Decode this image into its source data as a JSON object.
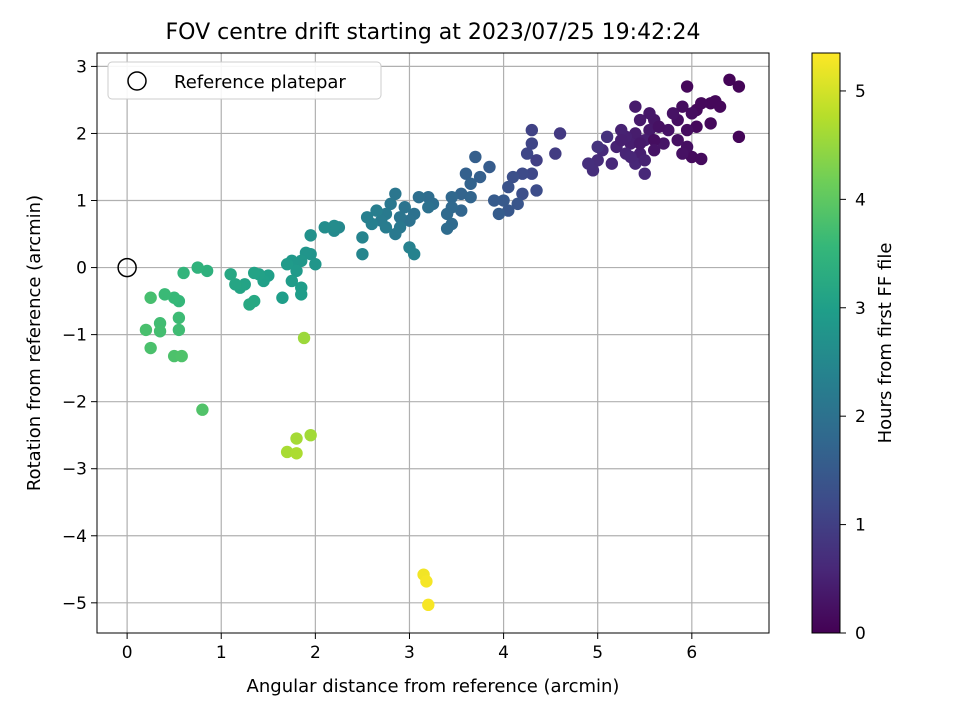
{
  "chart_data": {
    "type": "scatter",
    "title": "FOV centre drift starting at 2023/07/25 19:42:24",
    "xlabel": "Angular distance from reference (arcmin)",
    "ylabel": "Rotation from reference (arcmin)",
    "xlim": [
      -0.32,
      6.82
    ],
    "ylim": [
      -5.45,
      3.2
    ],
    "xticks": [
      "0",
      "1",
      "2",
      "3",
      "4",
      "5",
      "6"
    ],
    "yticks": [
      "−5",
      "−4",
      "−3",
      "−2",
      "−1",
      "0",
      "1",
      "2",
      "3"
    ],
    "xtick_values": [
      0,
      1,
      2,
      3,
      4,
      5,
      6
    ],
    "ytick_values": [
      -5,
      -4,
      -3,
      -2,
      -1,
      0,
      1,
      2,
      3
    ],
    "grid": true,
    "legend": {
      "placement": "top-left",
      "label": "Reference platepar",
      "marker": "open-circle"
    },
    "reference_point": {
      "x": 0,
      "y": 0
    },
    "colorbar": {
      "label": "Hours from first FF file",
      "range": [
        0,
        5.35
      ],
      "ticks": [
        "0",
        "1",
        "2",
        "3",
        "4",
        "5"
      ],
      "tick_values": [
        0,
        1,
        2,
        3,
        4,
        5
      ],
      "colormap": "viridis",
      "colors": [
        "#440154",
        "#482878",
        "#3e4a89",
        "#31688e",
        "#26828e",
        "#1f9e89",
        "#35b779",
        "#6ece58",
        "#b5de2b",
        "#fde725"
      ]
    },
    "points": [
      [
        6.4,
        2.8,
        0.05
      ],
      [
        6.5,
        2.7,
        0.05
      ],
      [
        6.5,
        1.95,
        0.06
      ],
      [
        5.95,
        2.7,
        0.1
      ],
      [
        6.2,
        2.45,
        0.1
      ],
      [
        6.25,
        2.48,
        0.1
      ],
      [
        6.3,
        2.4,
        0.1
      ],
      [
        6.05,
        2.35,
        0.12
      ],
      [
        6.1,
        2.45,
        0.12
      ],
      [
        6.2,
        2.15,
        0.12
      ],
      [
        6.05,
        2.1,
        0.12
      ],
      [
        6.0,
        1.65,
        0.15
      ],
      [
        6.1,
        1.62,
        0.15
      ],
      [
        6.0,
        2.3,
        0.18
      ],
      [
        5.9,
        2.4,
        0.18
      ],
      [
        5.95,
        2.05,
        0.2
      ],
      [
        5.85,
        2.2,
        0.22
      ],
      [
        5.95,
        1.8,
        0.22
      ],
      [
        5.85,
        1.9,
        0.24
      ],
      [
        5.9,
        1.7,
        0.24
      ],
      [
        5.8,
        2.3,
        0.26
      ],
      [
        5.75,
        2.05,
        0.28
      ],
      [
        5.7,
        1.85,
        0.3
      ],
      [
        5.6,
        2.2,
        0.32
      ],
      [
        5.55,
        2.3,
        0.34
      ],
      [
        5.55,
        2.05,
        0.36
      ],
      [
        5.45,
        2.2,
        0.38
      ],
      [
        5.4,
        2.4,
        0.4
      ],
      [
        5.4,
        2.0,
        0.42
      ],
      [
        5.35,
        1.85,
        0.44
      ],
      [
        5.5,
        1.9,
        0.44
      ],
      [
        5.45,
        1.7,
        0.46
      ],
      [
        5.3,
        1.95,
        0.48
      ],
      [
        5.25,
        2.05,
        0.5
      ],
      [
        5.2,
        1.8,
        0.52
      ],
      [
        5.3,
        1.7,
        0.55
      ],
      [
        5.4,
        1.55,
        0.58
      ],
      [
        5.5,
        1.4,
        0.6
      ],
      [
        5.15,
        1.55,
        0.62
      ],
      [
        5.05,
        1.75,
        0.65
      ],
      [
        5.0,
        1.6,
        0.68
      ],
      [
        4.95,
        1.45,
        0.7
      ],
      [
        4.9,
        1.55,
        0.72
      ],
      [
        5.1,
        1.95,
        0.75
      ],
      [
        5.0,
        1.8,
        0.78
      ],
      [
        5.6,
        1.9,
        0.2
      ],
      [
        5.65,
        2.1,
        0.24
      ],
      [
        5.5,
        1.6,
        0.5
      ],
      [
        5.35,
        1.65,
        0.56
      ],
      [
        5.45,
        1.85,
        0.36
      ],
      [
        5.6,
        1.75,
        0.28
      ],
      [
        5.25,
        1.9,
        0.46
      ],
      [
        4.6,
        2.0,
        0.9
      ],
      [
        4.55,
        1.7,
        0.95
      ],
      [
        4.35,
        1.6,
        1.0
      ],
      [
        4.3,
        2.05,
        1.05
      ],
      [
        4.3,
        1.85,
        1.1
      ],
      [
        4.25,
        1.7,
        1.12
      ],
      [
        4.3,
        1.4,
        1.15
      ],
      [
        4.2,
        1.4,
        1.2
      ],
      [
        4.35,
        1.15,
        1.25
      ],
      [
        4.2,
        1.1,
        1.28
      ],
      [
        4.1,
        1.35,
        1.3
      ],
      [
        4.05,
        1.2,
        1.35
      ],
      [
        4.15,
        0.95,
        1.4
      ],
      [
        4.05,
        0.85,
        1.45
      ],
      [
        4.0,
        1.0,
        1.48
      ],
      [
        3.9,
        1.0,
        1.52
      ],
      [
        3.95,
        0.8,
        1.55
      ],
      [
        3.85,
        1.5,
        1.55
      ],
      [
        3.7,
        1.65,
        1.6
      ],
      [
        3.75,
        1.35,
        1.62
      ],
      [
        3.6,
        1.4,
        1.65
      ],
      [
        3.65,
        1.25,
        1.68
      ],
      [
        3.55,
        1.1,
        1.7
      ],
      [
        3.65,
        1.05,
        1.72
      ],
      [
        3.55,
        0.85,
        1.75
      ],
      [
        3.45,
        1.05,
        1.78
      ],
      [
        3.45,
        0.9,
        1.8
      ],
      [
        3.4,
        0.8,
        1.82
      ],
      [
        3.45,
        0.65,
        1.85
      ],
      [
        3.4,
        0.58,
        1.88
      ],
      [
        3.2,
        1.05,
        1.9
      ],
      [
        3.25,
        0.95,
        1.92
      ],
      [
        3.1,
        1.05,
        1.95
      ],
      [
        3.2,
        0.9,
        1.98
      ],
      [
        3.05,
        0.8,
        2.0
      ],
      [
        3.0,
        0.7,
        2.02
      ],
      [
        2.95,
        0.9,
        2.05
      ],
      [
        2.9,
        0.75,
        2.08
      ],
      [
        2.85,
        1.1,
        2.1
      ],
      [
        2.8,
        0.95,
        2.12
      ],
      [
        2.9,
        0.6,
        2.15
      ],
      [
        2.85,
        0.5,
        2.18
      ],
      [
        2.75,
        0.8,
        2.2
      ],
      [
        2.7,
        0.7,
        2.22
      ],
      [
        2.75,
        0.6,
        2.25
      ],
      [
        2.65,
        0.85,
        2.28
      ],
      [
        2.6,
        0.65,
        2.3
      ],
      [
        2.55,
        0.75,
        2.32
      ],
      [
        3.0,
        0.3,
        2.35
      ],
      [
        3.05,
        0.2,
        2.38
      ],
      [
        2.5,
        0.45,
        2.42
      ],
      [
        2.5,
        0.2,
        2.45
      ],
      [
        2.25,
        0.6,
        2.5
      ],
      [
        2.2,
        0.55,
        2.55
      ],
      [
        2.2,
        0.62,
        2.58
      ],
      [
        2.1,
        0.6,
        2.62
      ],
      [
        1.95,
        0.48,
        2.7
      ],
      [
        1.95,
        0.2,
        2.75
      ],
      [
        1.9,
        0.22,
        2.78
      ],
      [
        2.0,
        0.05,
        2.8
      ],
      [
        1.85,
        0.1,
        2.82
      ],
      [
        1.75,
        0.1,
        2.85
      ],
      [
        1.8,
        -0.05,
        2.88
      ],
      [
        1.7,
        0.05,
        2.9
      ],
      [
        1.75,
        -0.2,
        2.92
      ],
      [
        1.85,
        -0.3,
        2.95
      ],
      [
        1.85,
        -0.4,
        2.95
      ],
      [
        1.65,
        -0.45,
        2.98
      ],
      [
        1.5,
        -0.12,
        3.0
      ],
      [
        1.45,
        -0.2,
        3.02
      ],
      [
        1.4,
        -0.1,
        3.05
      ],
      [
        1.35,
        -0.08,
        3.08
      ],
      [
        1.25,
        -0.25,
        3.1
      ],
      [
        1.2,
        -0.3,
        3.12
      ],
      [
        1.15,
        -0.25,
        3.15
      ],
      [
        1.1,
        -0.1,
        3.18
      ],
      [
        1.35,
        -0.5,
        3.2
      ],
      [
        1.3,
        -0.55,
        3.22
      ],
      [
        0.85,
        -0.05,
        3.4
      ],
      [
        0.75,
        0.0,
        3.45
      ],
      [
        0.6,
        -0.08,
        3.5
      ],
      [
        0.55,
        -0.5,
        3.55
      ],
      [
        0.5,
        -0.45,
        3.58
      ],
      [
        0.4,
        -0.4,
        3.62
      ],
      [
        0.55,
        -0.75,
        3.65
      ],
      [
        0.55,
        -0.93,
        3.68
      ],
      [
        0.35,
        -0.83,
        3.7
      ],
      [
        0.35,
        -0.95,
        3.72
      ],
      [
        0.25,
        -0.45,
        3.75
      ],
      [
        0.2,
        -0.93,
        3.78
      ],
      [
        0.25,
        -1.2,
        3.8
      ],
      [
        0.5,
        -1.32,
        3.82
      ],
      [
        0.58,
        -1.32,
        3.84
      ],
      [
        0.8,
        -2.12,
        3.86
      ],
      [
        1.88,
        -1.05,
        4.55
      ],
      [
        1.95,
        -2.5,
        4.6
      ],
      [
        1.8,
        -2.55,
        4.62
      ],
      [
        1.7,
        -2.75,
        4.65
      ],
      [
        1.8,
        -2.77,
        4.68
      ],
      [
        3.15,
        -4.58,
        5.25
      ],
      [
        3.18,
        -4.68,
        5.28
      ],
      [
        3.2,
        -5.03,
        5.3
      ]
    ]
  }
}
